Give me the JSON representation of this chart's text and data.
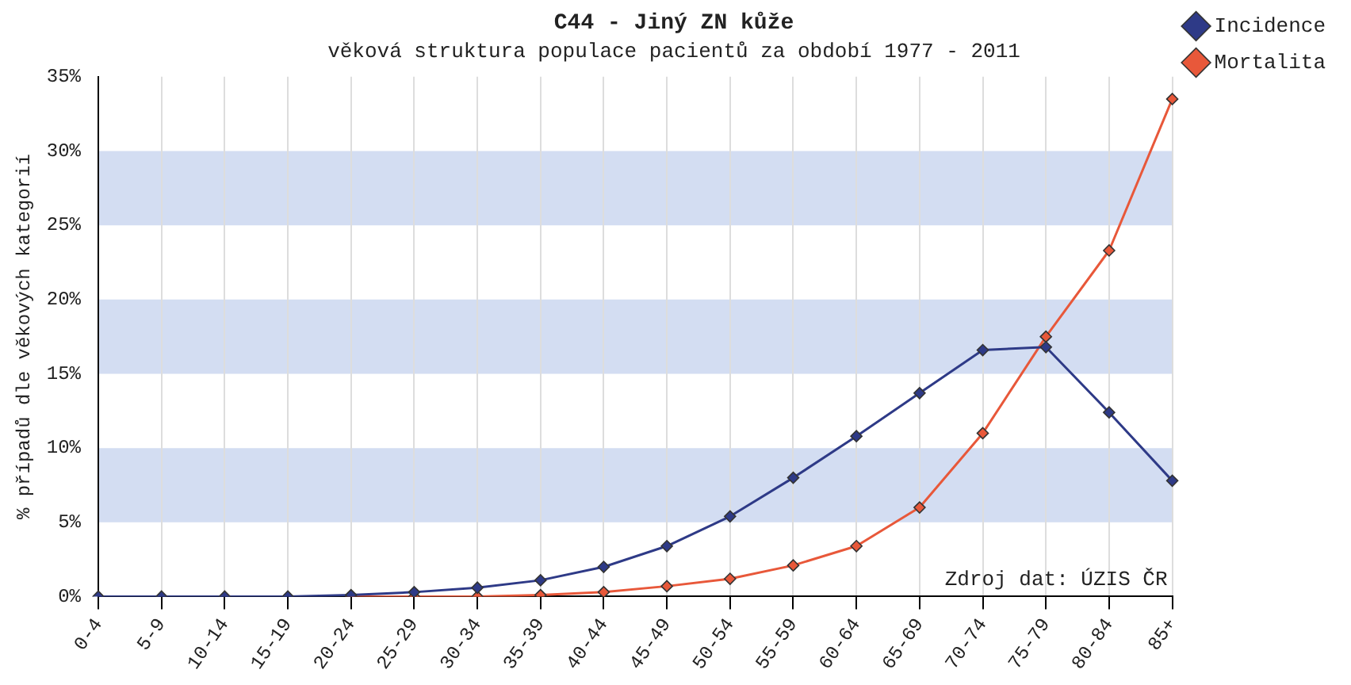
{
  "chart_data": {
    "type": "line",
    "title": "C44 - Jiný ZN kůže",
    "subtitle": "věková struktura populace pacientů za období 1977 - 2011",
    "ylabel": "% případů dle věkových kategorií",
    "categories": [
      "0-4",
      "5-9",
      "10-14",
      "15-19",
      "20-24",
      "25-29",
      "30-34",
      "35-39",
      "40-44",
      "45-49",
      "50-54",
      "55-59",
      "60-64",
      "65-69",
      "70-74",
      "75-79",
      "80-84",
      "85+"
    ],
    "series": [
      {
        "name": "Incidence",
        "color": "#2e3a87",
        "values": [
          0,
          0,
          0,
          0,
          0.1,
          0.3,
          0.6,
          1.1,
          2.0,
          3.4,
          5.4,
          8.0,
          10.8,
          13.7,
          16.6,
          16.8,
          12.4,
          7.8
        ]
      },
      {
        "name": "Mortalita",
        "color": "#e8583a",
        "values": [
          null,
          null,
          null,
          null,
          0,
          0,
          0,
          0.1,
          0.3,
          0.7,
          1.2,
          2.1,
          3.4,
          6.0,
          11.0,
          17.5,
          23.3,
          33.5
        ]
      }
    ],
    "ylim": [
      0,
      35
    ],
    "yticks": [
      {
        "value": 0,
        "label": "0%"
      },
      {
        "value": 5,
        "label": "5%"
      },
      {
        "value": 10,
        "label": "10%"
      },
      {
        "value": 15,
        "label": "15%"
      },
      {
        "value": 20,
        "label": "20%"
      },
      {
        "value": 25,
        "label": "25%"
      },
      {
        "value": 30,
        "label": "30%"
      },
      {
        "value": 35,
        "label": "35%"
      }
    ],
    "bands": [
      {
        "axis": "y",
        "from": 5,
        "to": 10,
        "color": "#d3ddf2"
      },
      {
        "axis": "y",
        "from": 15,
        "to": 20,
        "color": "#d3ddf2"
      },
      {
        "axis": "y",
        "from": 25,
        "to": 30,
        "color": "#d3ddf2"
      }
    ],
    "annotations": [
      "Zdroj dat: ÚZIS ČR"
    ],
    "grid": true,
    "legend": "top right",
    "marker": "diamond",
    "line_style": "solid"
  }
}
